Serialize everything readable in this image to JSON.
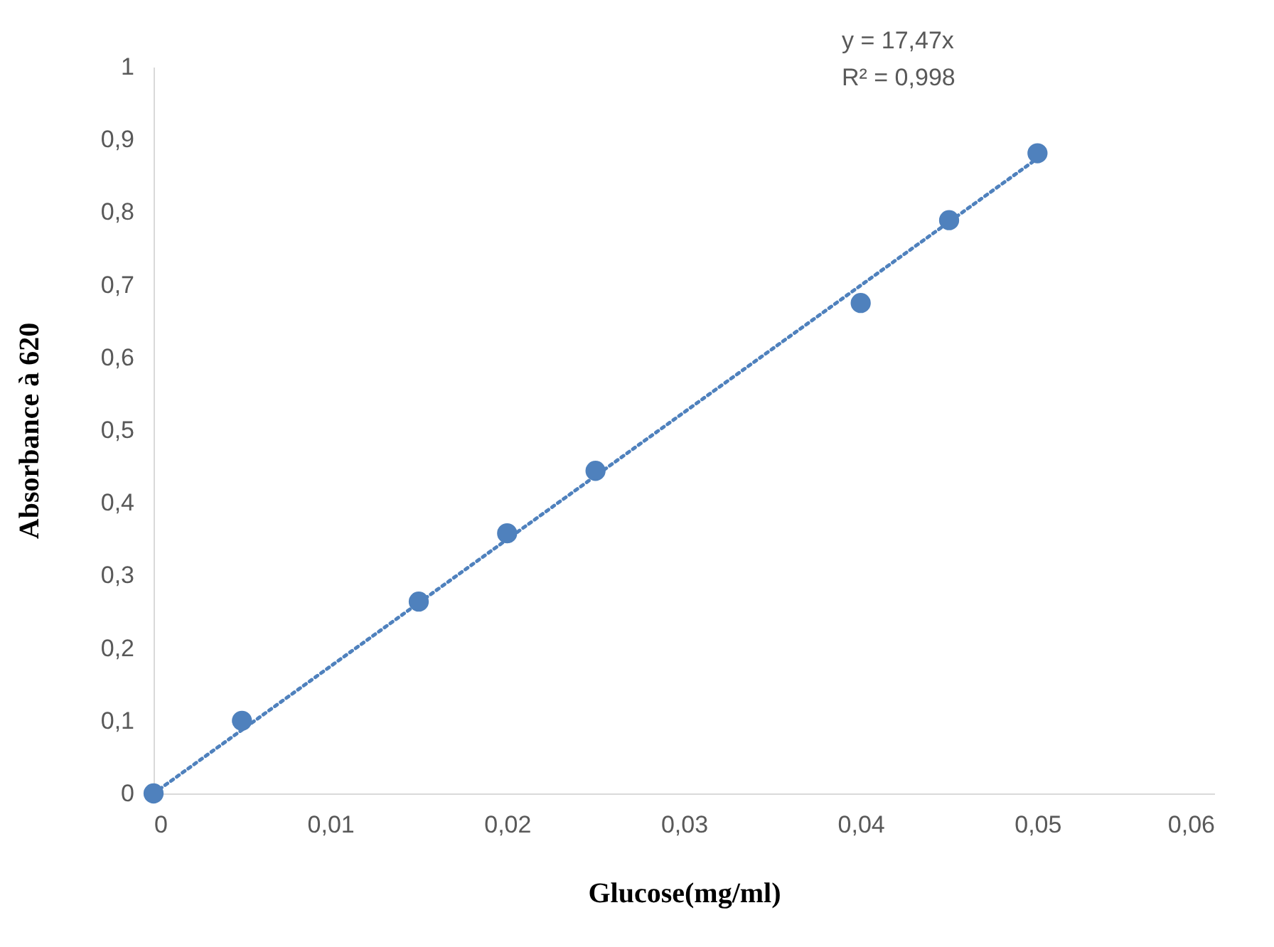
{
  "chart_data": {
    "type": "scatter",
    "xlabel": "Glucose(mg/ml)",
    "ylabel": "Absorbance à 620",
    "series": [
      {
        "color": "#4f81bd",
        "marker": "circle",
        "x": [
          0,
          0.005,
          0.015,
          0.02,
          0.025,
          0.04,
          0.045,
          0.05
        ],
        "values": [
          0,
          0.1,
          0.264,
          0.358,
          0.444,
          0.675,
          0.789,
          0.881
        ]
      },
      {
        "type": "line",
        "color": "#4f81bd",
        "line_style": "dotted",
        "x": [
          0,
          0.05
        ],
        "values": [
          0,
          0.874
        ]
      }
    ],
    "xlim": [
      0,
      0.06
    ],
    "ylim": [
      0,
      1
    ],
    "xticks": [
      0,
      {
        "value": 0.01,
        "label": "0,01"
      },
      {
        "value": 0.02,
        "label": "0,02"
      },
      {
        "value": 0.03,
        "label": "0,03"
      },
      {
        "value": 0.04,
        "label": "0,04"
      },
      {
        "value": 0.05,
        "label": "0,05"
      },
      {
        "value": 0.06,
        "label": "0,06"
      }
    ],
    "yticks": [
      0,
      {
        "value": 0.1,
        "label": "0,1"
      },
      {
        "value": 0.2,
        "label": "0,2"
      },
      {
        "value": 0.3,
        "label": "0,3"
      },
      {
        "value": 0.4,
        "label": "0,4"
      },
      {
        "value": 0.5,
        "label": "0,5"
      },
      {
        "value": 0.6,
        "label": "0,6"
      },
      {
        "value": 0.7,
        "label": "0,7"
      },
      {
        "value": 0.8,
        "label": "0,8"
      },
      {
        "value": 0.9,
        "label": "0,9"
      },
      1
    ],
    "grid": false,
    "annotations": [
      "y = 17,47x",
      "R² = 0,998"
    ]
  }
}
